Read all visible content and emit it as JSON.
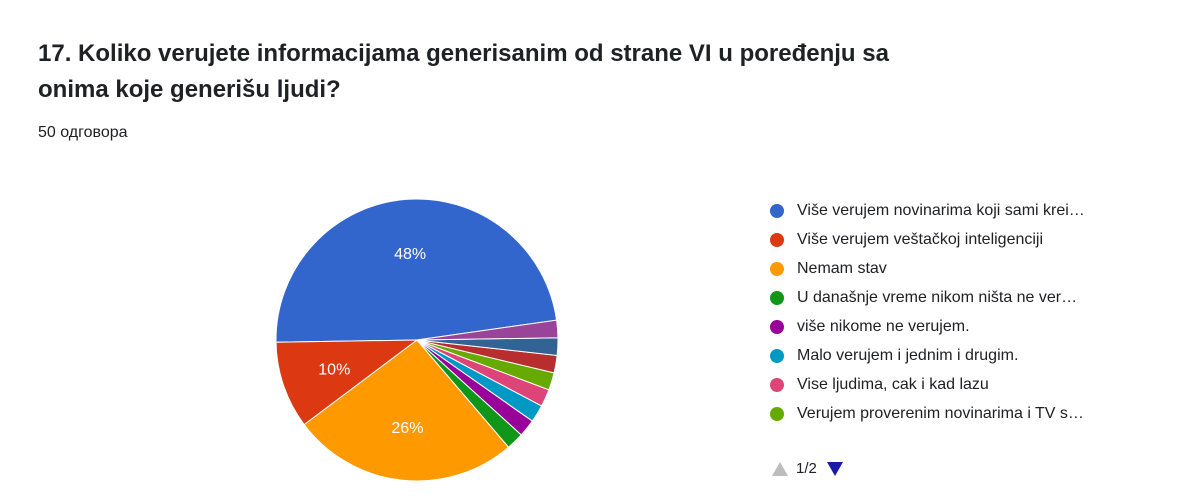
{
  "question": {
    "title": "17. Koliko verujete informacijama generisanim od strane VI u poređenju sa onima koje generišu ljudi?",
    "responses": "50 одговора"
  },
  "chart_data": {
    "type": "pie",
    "slices": [
      {
        "label": "Više verujem novinarima koji sami krei…",
        "value": 48,
        "color": "#3366cc",
        "data_label": "48%"
      },
      {
        "label": "Više verujem veštačkoj inteligenciji",
        "value": 10,
        "color": "#dc3912",
        "data_label": "10%"
      },
      {
        "label": "Nemam stav",
        "value": 26,
        "color": "#ff9900",
        "data_label": "26%"
      },
      {
        "label": "U današnje vreme nikom ništa ne ver…",
        "value": 2,
        "color": "#109618",
        "data_label": ""
      },
      {
        "label": "više nikome ne verujem.",
        "value": 2,
        "color": "#990099",
        "data_label": ""
      },
      {
        "label": "Malo verujem i jednim i drugim.",
        "value": 2,
        "color": "#0099c6",
        "data_label": ""
      },
      {
        "label": "Vise ljudima, cak i kad lazu",
        "value": 2,
        "color": "#dd4477",
        "data_label": ""
      },
      {
        "label": "Verujem proverenim novinarima i TV s…",
        "value": 2,
        "color": "#66aa00",
        "data_label": ""
      },
      {
        "value": 2,
        "color": "#b82e2e"
      },
      {
        "value": 2,
        "color": "#316395"
      },
      {
        "value": 2,
        "color": "#994499"
      }
    ],
    "legend_position": "right"
  },
  "pagination": {
    "label": "1/2"
  }
}
